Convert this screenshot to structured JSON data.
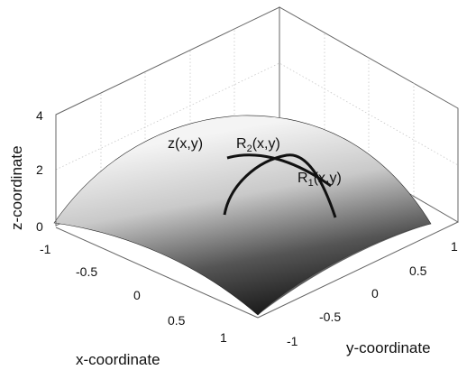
{
  "chart_data": {
    "type": "surface",
    "title": "",
    "xlabel": "x-coordinate",
    "ylabel": "y-coordinate",
    "zlabel": "z-coordinate",
    "x_ticks": [
      "-1",
      "-0.5",
      "0",
      "0.5",
      "1"
    ],
    "y_ticks": [
      "-1",
      "-0.5",
      "0",
      "0.5",
      "1"
    ],
    "z_ticks": [
      "0",
      "2",
      "4"
    ],
    "xlim": [
      -1,
      1
    ],
    "ylim": [
      -1,
      1
    ],
    "zlim": [
      0,
      4
    ],
    "grid": true,
    "colormap": "grayscale",
    "surface": {
      "name": "z(x,y)",
      "shape": "dome",
      "peak": {
        "x": 0,
        "y": 0,
        "z": 3.0
      },
      "corner_z": 0.0
    },
    "curves": [
      {
        "name": "R1(x,y)",
        "base": "R",
        "sub": "1",
        "rest": "(x,y)",
        "color": "#111111"
      },
      {
        "name": "R2(x,y)",
        "base": "R",
        "sub": "2",
        "rest": "(x,y)",
        "color": "#111111"
      }
    ]
  }
}
